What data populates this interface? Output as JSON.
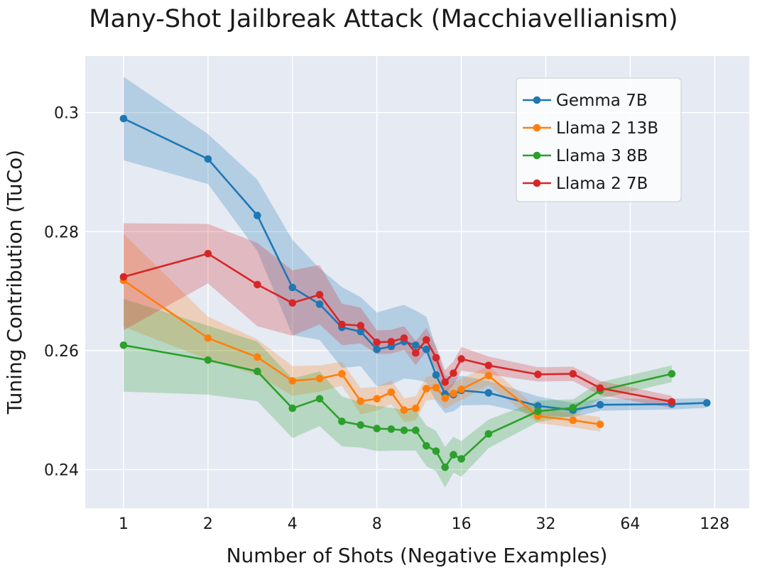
{
  "chart_data": {
    "type": "line",
    "title": "Many-Shot Jailbreak Attack (Macchiavellianism)",
    "xlabel": "Number of Shots (Negative Examples)",
    "ylabel": "Tuning Contribution (TuCo)",
    "x_scale": "log2",
    "xlim": [
      0.73,
      170
    ],
    "ylim": [
      0.2335,
      0.3095
    ],
    "x_ticks": [
      1,
      2,
      4,
      8,
      16,
      32,
      64,
      128
    ],
    "x_tick_labels": [
      "1",
      "2",
      "4",
      "8",
      "16",
      "32",
      "64",
      "128"
    ],
    "y_ticks": [
      0.24,
      0.26,
      0.28,
      0.3
    ],
    "y_tick_labels": [
      "0.24",
      "0.26",
      "0.28",
      "0.3"
    ],
    "grid": true,
    "legend_position": "top-right",
    "series": [
      {
        "name": "Gemma 7B",
        "color": "#1f77b4",
        "x": [
          1,
          2,
          3,
          4,
          5,
          6,
          7,
          8,
          9,
          10,
          11,
          12,
          13,
          14,
          15,
          16,
          20,
          30,
          40,
          50,
          90,
          120
        ],
        "y": [
          0.299,
          0.2922,
          0.2827,
          0.2706,
          0.2678,
          0.2639,
          0.2632,
          0.2602,
          0.2607,
          0.2615,
          0.2609,
          0.2602,
          0.2559,
          0.2527,
          0.2526,
          0.2533,
          0.2529,
          0.2507,
          0.25,
          0.2509,
          0.251,
          0.2512
        ],
        "band": [
          0.007,
          0.0042,
          0.006,
          0.008,
          0.006,
          0.0068,
          0.0058,
          0.0062,
          0.0064,
          0.0062,
          0.0058,
          0.0055,
          0.0045,
          0.0032,
          0.0028,
          0.0025,
          0.002,
          0.0016,
          0.0012,
          0.001,
          0.0009,
          0.0008
        ]
      },
      {
        "name": "Llama 2 13B",
        "color": "#ff7f0e",
        "x": [
          1,
          2,
          3,
          4,
          5,
          6,
          7,
          8,
          9,
          10,
          11,
          12,
          13,
          14,
          15,
          16,
          20,
          30,
          40,
          50
        ],
        "y": [
          0.2718,
          0.2621,
          0.2589,
          0.2549,
          0.2553,
          0.2561,
          0.2515,
          0.2519,
          0.253,
          0.25,
          0.2503,
          0.2536,
          0.2538,
          0.252,
          0.2528,
          0.2535,
          0.2558,
          0.249,
          0.2483,
          0.2476
        ],
        "band": [
          0.0078,
          0.0036,
          0.003,
          0.0025,
          0.0022,
          0.002,
          0.0022,
          0.002,
          0.002,
          0.002,
          0.002,
          0.002,
          0.002,
          0.0018,
          0.0018,
          0.0018,
          0.0016,
          0.0012,
          0.0012,
          0.0012
        ]
      },
      {
        "name": "Llama 3 8B",
        "color": "#2ca02c",
        "x": [
          1,
          2,
          3,
          4,
          5,
          6,
          7,
          8,
          9,
          10,
          11,
          12,
          13,
          14,
          15,
          16,
          20,
          30,
          40,
          50,
          90
        ],
        "y": [
          0.2609,
          0.2584,
          0.2565,
          0.2503,
          0.2519,
          0.2481,
          0.2475,
          0.2469,
          0.2468,
          0.2466,
          0.2466,
          0.244,
          0.2431,
          0.2404,
          0.2425,
          0.2418,
          0.246,
          0.2498,
          0.2504,
          0.2533,
          0.2561
        ],
        "band": [
          0.0078,
          0.0058,
          0.005,
          0.005,
          0.0046,
          0.0042,
          0.0038,
          0.0038,
          0.0036,
          0.0034,
          0.0034,
          0.0034,
          0.0034,
          0.0034,
          0.003,
          0.003,
          0.0024,
          0.0018,
          0.0014,
          0.0014,
          0.0014
        ]
      },
      {
        "name": "Llama 2 7B",
        "color": "#d62728",
        "x": [
          1,
          2,
          3,
          4,
          5,
          6,
          7,
          8,
          9,
          10,
          11,
          12,
          13,
          14,
          15,
          16,
          20,
          30,
          40,
          50,
          90
        ],
        "y": [
          0.2724,
          0.2763,
          0.2711,
          0.268,
          0.2694,
          0.2644,
          0.2642,
          0.2614,
          0.2615,
          0.2621,
          0.2596,
          0.2618,
          0.2588,
          0.2547,
          0.2562,
          0.2586,
          0.2575,
          0.256,
          0.2561,
          0.2537,
          0.2514
        ],
        "band": [
          0.009,
          0.005,
          0.007,
          0.0055,
          0.005,
          0.0035,
          0.003,
          0.002,
          0.002,
          0.002,
          0.002,
          0.002,
          0.002,
          0.002,
          0.002,
          0.002,
          0.0015,
          0.0012,
          0.0012,
          0.0012,
          0.001
        ]
      }
    ]
  }
}
